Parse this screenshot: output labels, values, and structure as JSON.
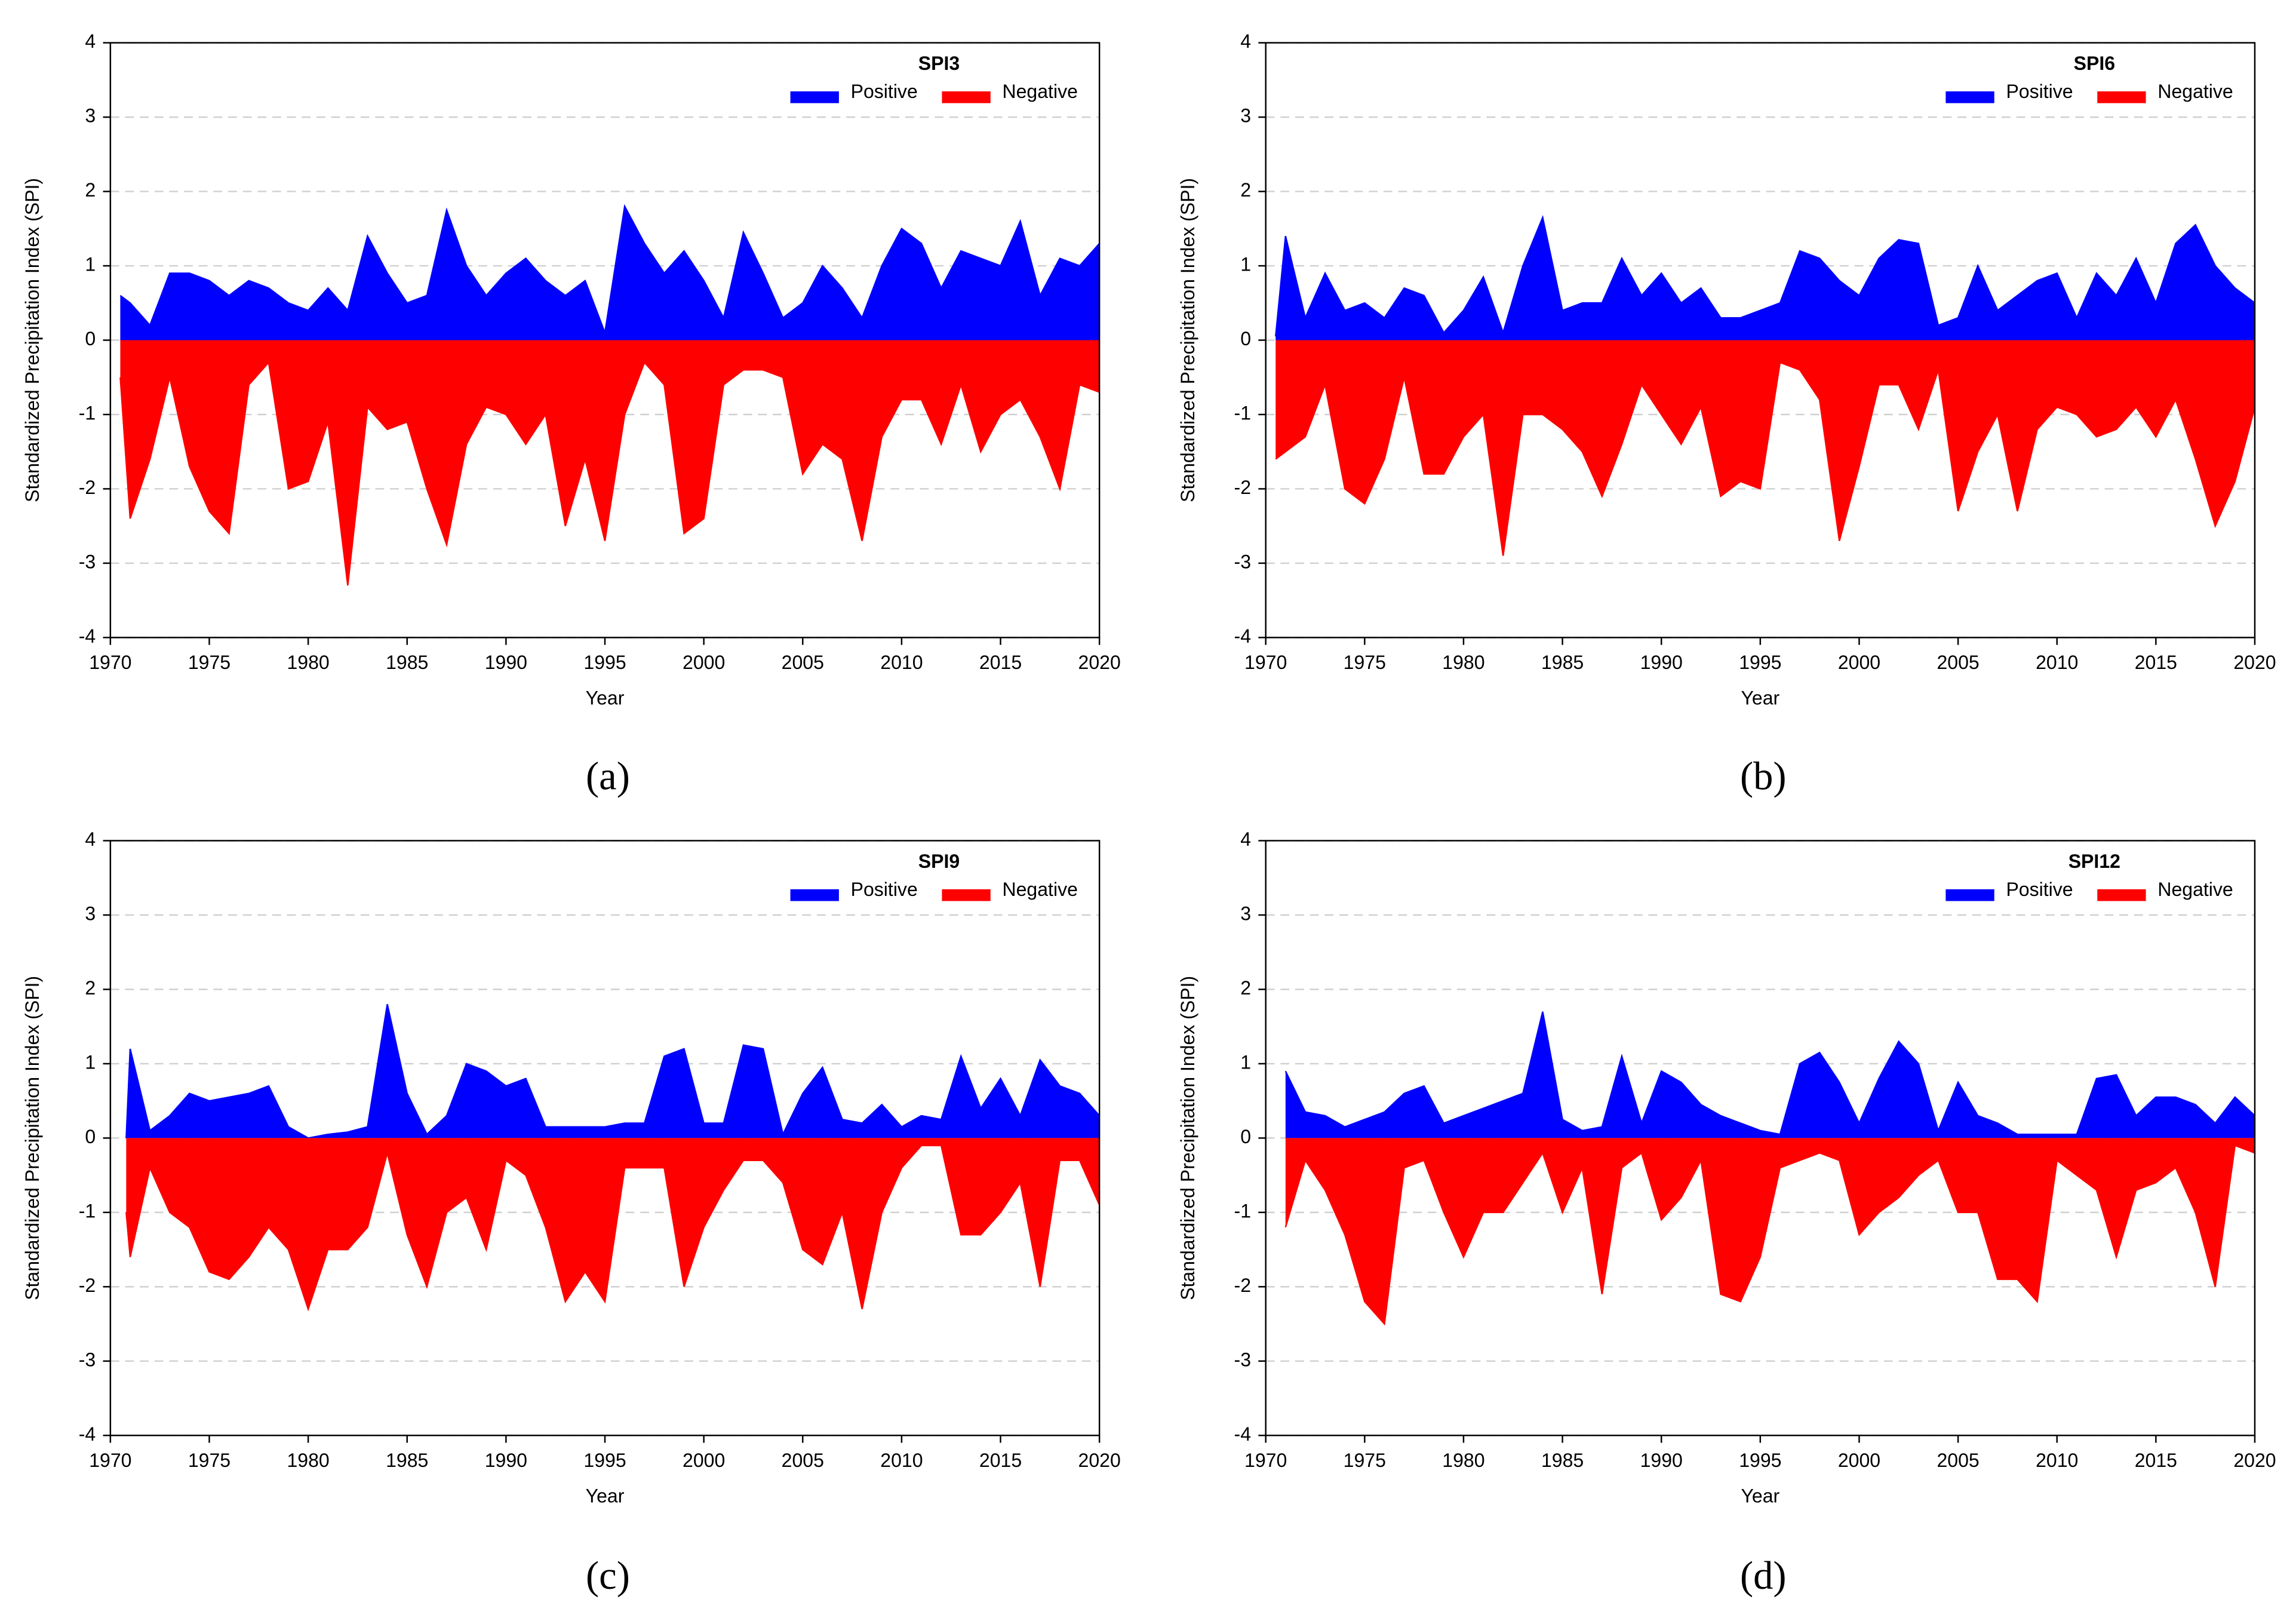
{
  "chart_data": [
    {
      "type": "area",
      "title": "SPI3",
      "panel_label": "(a)",
      "x_label": "Year",
      "y_label": "Standardized Precipitation Index (SPI)",
      "x": [
        1970.5,
        1971,
        1972,
        1973,
        1974,
        1975,
        1976,
        1977,
        1978,
        1979,
        1980,
        1981,
        1982,
        1983,
        1984,
        1985,
        1986,
        1987,
        1988,
        1989,
        1990,
        1991,
        1992,
        1993,
        1994,
        1995,
        1996,
        1997,
        1998,
        1999,
        2000,
        2001,
        2002,
        2003,
        2004,
        2005,
        2006,
        2007,
        2008,
        2009,
        2010,
        2011,
        2012,
        2013,
        2014,
        2015,
        2016,
        2017,
        2018,
        2019,
        2020
      ],
      "series": [
        {
          "name": "Positive",
          "color": "#0000ff",
          "values": [
            0.6,
            0.5,
            0.2,
            0.9,
            0.9,
            0.8,
            0.6,
            0.8,
            0.7,
            0.5,
            0.4,
            0.7,
            0.4,
            1.4,
            0.9,
            0.5,
            0.6,
            1.75,
            1.0,
            0.6,
            0.9,
            1.1,
            0.8,
            0.6,
            0.8,
            0.1,
            1.8,
            1.3,
            0.9,
            1.2,
            0.8,
            0.3,
            1.45,
            0.9,
            0.3,
            0.5,
            1.0,
            0.7,
            0.3,
            1.0,
            1.5,
            1.3,
            0.7,
            1.2,
            1.1,
            1.0,
            1.6,
            0.6,
            1.1,
            1.0,
            1.3
          ]
        },
        {
          "name": "Negative",
          "color": "#ff0000",
          "values": [
            -0.5,
            -2.4,
            -1.6,
            -0.5,
            -1.7,
            -2.3,
            -2.6,
            -0.6,
            -0.3,
            -2.0,
            -1.9,
            -1.1,
            -3.3,
            -0.9,
            -1.2,
            -1.1,
            -2.0,
            -2.75,
            -1.4,
            -0.9,
            -1.0,
            -1.4,
            -1.0,
            -2.5,
            -1.6,
            -2.7,
            -1.0,
            -0.3,
            -0.6,
            -2.6,
            -2.4,
            -0.6,
            -0.4,
            -0.4,
            -0.5,
            -1.8,
            -1.4,
            -1.6,
            -2.7,
            -1.3,
            -0.8,
            -0.8,
            -1.4,
            -0.6,
            -1.5,
            -1.0,
            -0.8,
            -1.3,
            -2.0,
            -0.6,
            -0.7
          ]
        }
      ],
      "xlim": [
        1970,
        2020
      ],
      "xticks": [
        1970,
        1975,
        1980,
        1985,
        1990,
        1995,
        2000,
        2005,
        2010,
        2015,
        2020
      ],
      "ylim": [
        -4,
        4
      ],
      "yticks": [
        -4,
        -3,
        -2,
        -1,
        0,
        1,
        2,
        3,
        4
      ],
      "grid": true
    },
    {
      "type": "area",
      "title": "SPI6",
      "panel_label": "(b)",
      "x_label": "Year",
      "y_label": "Standardized Precipitation Index (SPI)",
      "x": [
        1970.5,
        1971,
        1972,
        1973,
        1974,
        1975,
        1976,
        1977,
        1978,
        1979,
        1980,
        1981,
        1982,
        1983,
        1984,
        1985,
        1986,
        1987,
        1988,
        1989,
        1990,
        1991,
        1992,
        1993,
        1994,
        1995,
        1996,
        1997,
        1998,
        1999,
        2000,
        2001,
        2002,
        2003,
        2004,
        2005,
        2006,
        2007,
        2008,
        2009,
        2010,
        2011,
        2012,
        2013,
        2014,
        2015,
        2016,
        2017,
        2018,
        2019,
        2020
      ],
      "series": [
        {
          "name": "Positive",
          "color": "#0000ff",
          "values": [
            0.05,
            1.4,
            0.3,
            0.9,
            0.4,
            0.5,
            0.3,
            0.7,
            0.6,
            0.1,
            0.4,
            0.85,
            0.1,
            1.0,
            1.65,
            0.4,
            0.5,
            0.5,
            1.1,
            0.6,
            0.9,
            0.5,
            0.7,
            0.3,
            0.3,
            0.4,
            0.5,
            1.2,
            1.1,
            0.8,
            0.6,
            1.1,
            1.35,
            1.3,
            0.2,
            0.3,
            1.0,
            0.4,
            0.6,
            0.8,
            0.9,
            0.3,
            0.9,
            0.6,
            1.1,
            0.5,
            1.3,
            1.55,
            1.0,
            0.7,
            0.5
          ]
        },
        {
          "name": "Negative",
          "color": "#ff0000",
          "values": [
            -1.6,
            -1.5,
            -1.3,
            -0.6,
            -2.0,
            -2.2,
            -1.6,
            -0.5,
            -1.8,
            -1.8,
            -1.3,
            -1.0,
            -2.9,
            -1.0,
            -1.0,
            -1.2,
            -1.5,
            -2.1,
            -1.4,
            -0.6,
            -1.0,
            -1.4,
            -0.9,
            -2.1,
            -1.9,
            -2.0,
            -0.3,
            -0.4,
            -0.8,
            -2.7,
            -1.7,
            -0.6,
            -0.6,
            -1.2,
            -0.4,
            -2.3,
            -1.5,
            -1.0,
            -2.3,
            -1.2,
            -0.9,
            -1.0,
            -1.3,
            -1.2,
            -0.9,
            -1.3,
            -0.8,
            -1.6,
            -2.5,
            -1.9,
            -0.9
          ]
        }
      ],
      "xlim": [
        1970,
        2020
      ],
      "xticks": [
        1970,
        1975,
        1980,
        1985,
        1990,
        1995,
        2000,
        2005,
        2010,
        2015,
        2020
      ],
      "ylim": [
        -4,
        4
      ],
      "yticks": [
        -4,
        -3,
        -2,
        -1,
        0,
        1,
        2,
        3,
        4
      ],
      "grid": true
    },
    {
      "type": "area",
      "title": "SPI9",
      "panel_label": "(c)",
      "x_label": "Year",
      "y_label": "Standardized Precipitation Index (SPI)",
      "x": [
        1970.8,
        1971,
        1972,
        1973,
        1974,
        1975,
        1976,
        1977,
        1978,
        1979,
        1980,
        1981,
        1982,
        1983,
        1984,
        1985,
        1986,
        1987,
        1988,
        1989,
        1990,
        1991,
        1992,
        1993,
        1994,
        1995,
        1996,
        1997,
        1998,
        1999,
        2000,
        2001,
        2002,
        2003,
        2004,
        2005,
        2006,
        2007,
        2008,
        2009,
        2010,
        2011,
        2012,
        2013,
        2014,
        2015,
        2016,
        2017,
        2018,
        2019,
        2020
      ],
      "series": [
        {
          "name": "Positive",
          "color": "#0000ff",
          "values": [
            0,
            1.2,
            0.1,
            0.3,
            0.6,
            0.5,
            0.55,
            0.6,
            0.7,
            0.15,
            0,
            0.05,
            0.08,
            0.15,
            1.8,
            0.6,
            0.05,
            0.3,
            1.0,
            0.9,
            0.7,
            0.8,
            0.15,
            0.15,
            0.15,
            0.15,
            0.2,
            0.2,
            1.1,
            1.2,
            0.2,
            0.2,
            1.25,
            1.2,
            0.05,
            0.6,
            0.95,
            0.25,
            0.2,
            0.45,
            0.15,
            0.3,
            0.25,
            1.1,
            0.4,
            0.8,
            0.3,
            1.05,
            0.7,
            0.6,
            0.3
          ]
        },
        {
          "name": "Negative",
          "color": "#ff0000",
          "values": [
            -1.0,
            -1.6,
            -0.4,
            -1.0,
            -1.2,
            -1.8,
            -1.9,
            -1.6,
            -1.2,
            -1.5,
            -2.3,
            -1.5,
            -1.5,
            -1.2,
            -0.2,
            -1.3,
            -2.0,
            -1.0,
            -0.8,
            -1.5,
            -0.3,
            -0.5,
            -1.2,
            -2.2,
            -1.8,
            -2.2,
            -0.4,
            -0.4,
            -0.4,
            -2.0,
            -1.2,
            -0.7,
            -0.3,
            -0.3,
            -0.6,
            -1.5,
            -1.7,
            -1.0,
            -2.3,
            -1.0,
            -0.4,
            -0.1,
            -0.1,
            -1.3,
            -1.3,
            -1.0,
            -0.6,
            -2.0,
            -0.3,
            -0.3,
            -0.9
          ]
        }
      ],
      "xlim": [
        1970,
        2020
      ],
      "xticks": [
        1970,
        1975,
        1980,
        1985,
        1990,
        1995,
        2000,
        2005,
        2010,
        2015,
        2020
      ],
      "ylim": [
        -4,
        4
      ],
      "yticks": [
        -4,
        -3,
        -2,
        -1,
        0,
        1,
        2,
        3,
        4
      ],
      "grid": true
    },
    {
      "type": "area",
      "title": "SPI12",
      "panel_label": "(d)",
      "x_label": "Year",
      "y_label": "Standardized Precipitation Index (SPI)",
      "x": [
        1971,
        1972,
        1973,
        1974,
        1975,
        1976,
        1977,
        1978,
        1979,
        1980,
        1981,
        1982,
        1983,
        1984,
        1985,
        1986,
        1987,
        1988,
        1989,
        1990,
        1991,
        1992,
        1993,
        1994,
        1995,
        1996,
        1997,
        1998,
        1999,
        2000,
        2001,
        2002,
        2003,
        2004,
        2005,
        2006,
        2007,
        2008,
        2009,
        2010,
        2011,
        2012,
        2013,
        2014,
        2015,
        2016,
        2017,
        2018,
        2019,
        2020
      ],
      "series": [
        {
          "name": "Positive",
          "color": "#0000ff",
          "values": [
            0.9,
            0.35,
            0.3,
            0.15,
            0.25,
            0.35,
            0.6,
            0.7,
            0.2,
            0.3,
            0.4,
            0.5,
            0.6,
            1.7,
            0.25,
            0.1,
            0.15,
            1.1,
            0.2,
            0.9,
            0.75,
            0.45,
            0.3,
            0.2,
            0.1,
            0.05,
            1.0,
            1.15,
            0.75,
            0.2,
            0.8,
            1.3,
            1.0,
            0.1,
            0.75,
            0.3,
            0.2,
            0.05,
            0.05,
            0.05,
            0.05,
            0.8,
            0.85,
            0.3,
            0.55,
            0.55,
            0.45,
            0.2,
            0.55,
            0.3
          ]
        },
        {
          "name": "Negative",
          "color": "#ff0000",
          "values": [
            -1.2,
            -0.3,
            -0.7,
            -1.3,
            -2.2,
            -2.5,
            -0.4,
            -0.3,
            -1.0,
            -1.6,
            -1.0,
            -1.0,
            -0.6,
            -0.2,
            -1.0,
            -0.4,
            -2.1,
            -0.4,
            -0.2,
            -1.1,
            -0.8,
            -0.3,
            -2.1,
            -2.2,
            -1.6,
            -0.4,
            -0.3,
            -0.2,
            -0.3,
            -1.3,
            -1.0,
            -0.8,
            -0.5,
            -0.3,
            -1.0,
            -1.0,
            -1.9,
            -1.9,
            -2.2,
            -0.3,
            -0.5,
            -0.7,
            -1.6,
            -0.7,
            -0.6,
            -0.4,
            -1.0,
            -2.0,
            -0.1,
            -0.2
          ]
        }
      ],
      "xlim": [
        1970,
        2020
      ],
      "xticks": [
        1970,
        1975,
        1980,
        1985,
        1990,
        1995,
        2000,
        2005,
        2010,
        2015,
        2020
      ],
      "ylim": [
        -4,
        4
      ],
      "yticks": [
        -4,
        -3,
        -2,
        -1,
        0,
        1,
        2,
        3,
        4
      ],
      "grid": true
    }
  ]
}
